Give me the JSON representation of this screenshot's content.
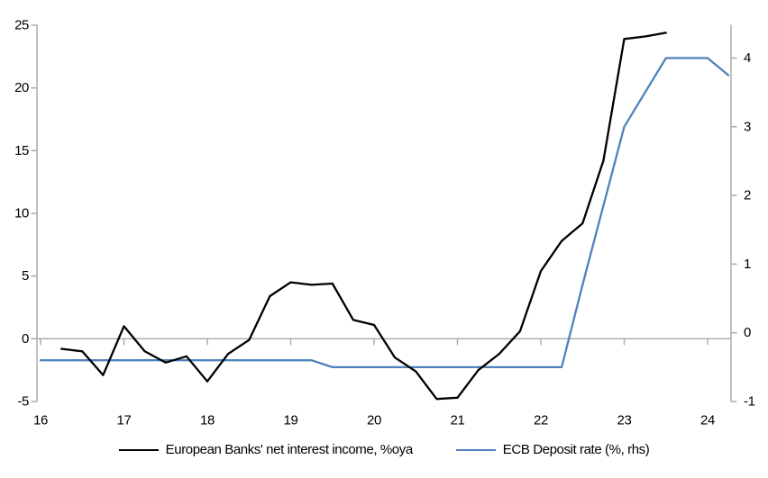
{
  "chart_data": {
    "type": "line",
    "title": "",
    "grid": "zero-line-only",
    "legend_position": "bottom",
    "x_axis": {
      "ticks": [
        16,
        17,
        18,
        19,
        20,
        21,
        22,
        23,
        24
      ],
      "range": [
        16,
        24.3
      ]
    },
    "left_axis": {
      "ticks": [
        25,
        20,
        15,
        10,
        5,
        0,
        -5
      ],
      "range": [
        -5,
        25
      ]
    },
    "right_axis": {
      "ticks": [
        4,
        3,
        2,
        1,
        0,
        -1
      ],
      "range": [
        -1,
        4.48
      ]
    },
    "series": [
      {
        "name": "European Banks' net interest income, %oya",
        "axis": "left",
        "color": "#000000",
        "x": [
          16.25,
          16.5,
          16.75,
          17.0,
          17.25,
          17.5,
          17.75,
          18.0,
          18.25,
          18.5,
          18.75,
          19.0,
          19.25,
          19.5,
          19.75,
          20.0,
          20.25,
          20.5,
          20.75,
          21.0,
          21.25,
          21.5,
          21.75,
          22.0,
          22.25,
          22.5,
          22.75,
          23.0,
          23.25,
          23.5
        ],
        "values": [
          -0.8,
          -1.0,
          -2.9,
          1.0,
          -1.0,
          -1.9,
          -1.4,
          -3.4,
          -1.2,
          -0.1,
          3.4,
          4.5,
          4.3,
          4.4,
          1.5,
          1.1,
          -1.5,
          -2.6,
          -4.8,
          -4.7,
          -2.5,
          -1.2,
          0.6,
          5.4,
          7.8,
          9.2,
          14.2,
          23.9,
          24.1,
          24.4
        ]
      },
      {
        "name": "ECB Deposit rate (%, rhs)",
        "axis": "right",
        "color": "#4f81bd",
        "x": [
          16.0,
          16.25,
          16.5,
          16.75,
          17.0,
          17.25,
          17.5,
          17.75,
          18.0,
          18.25,
          18.5,
          18.75,
          19.0,
          19.25,
          19.5,
          19.75,
          20.0,
          20.25,
          20.5,
          20.75,
          21.0,
          21.25,
          21.5,
          21.75,
          22.0,
          22.25,
          22.5,
          22.75,
          23.0,
          23.25,
          23.5,
          23.75,
          24.0,
          24.25
        ],
        "values": [
          -0.4,
          -0.4,
          -0.4,
          -0.4,
          -0.4,
          -0.4,
          -0.4,
          -0.4,
          -0.4,
          -0.4,
          -0.4,
          -0.4,
          -0.4,
          -0.4,
          -0.5,
          -0.5,
          -0.5,
          -0.5,
          -0.5,
          -0.5,
          -0.5,
          -0.5,
          -0.5,
          -0.5,
          -0.5,
          -0.5,
          0.7,
          1.85,
          3.0,
          3.5,
          4.0,
          4.0,
          4.0,
          3.75
        ]
      }
    ]
  },
  "colors": {
    "axis_gray": "#a8a8a8",
    "zero_line_gray": "#a8a8a8",
    "tick_label": "#000000",
    "series_black": "#000000",
    "series_blue": "#4f81bd"
  }
}
